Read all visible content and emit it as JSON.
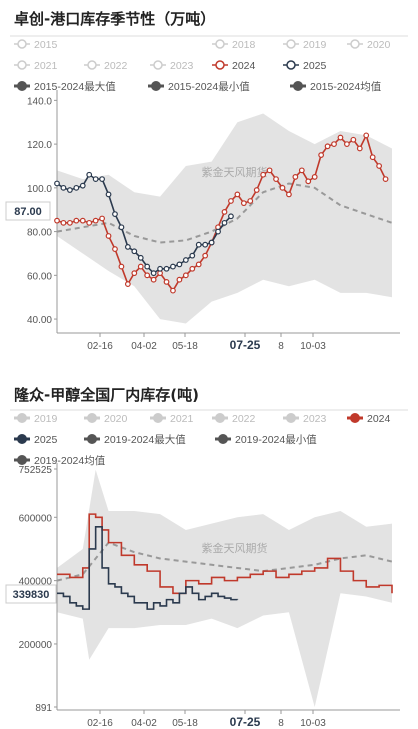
{
  "charts": [
    {
      "title": "卓创-港口库存季节性（万吨）",
      "legend": [
        {
          "label": "2015",
          "active": false,
          "color": "#c8c8c8",
          "marker": "circle"
        },
        {
          "label": "2018",
          "active": false,
          "color": "#c8c8c8",
          "marker": "circle"
        },
        {
          "label": "2019",
          "active": false,
          "color": "#c8c8c8",
          "marker": "circle"
        },
        {
          "label": "2020",
          "active": false,
          "color": "#c8c8c8",
          "marker": "circle"
        },
        {
          "label": "2021",
          "active": false,
          "color": "#c8c8c8",
          "marker": "circle"
        },
        {
          "label": "2022",
          "active": false,
          "color": "#c8c8c8",
          "marker": "circle"
        },
        {
          "label": "2023",
          "active": false,
          "color": "#c8c8c8",
          "marker": "circle"
        },
        {
          "label": "2024",
          "active": true,
          "color": "#c0392b",
          "marker": "circle"
        },
        {
          "label": "2025",
          "active": true,
          "color": "#2b3a4e",
          "marker": "circle"
        },
        {
          "label": "2015-2024最大值",
          "active": true,
          "color": "#555555",
          "marker": "dot"
        },
        {
          "label": "2015-2024最小值",
          "active": true,
          "color": "#555555",
          "marker": "dot"
        },
        {
          "label": "2015-2024均值",
          "active": true,
          "color": "#555555",
          "marker": "dot"
        }
      ],
      "watermark": "紫金天风期货",
      "current_value_label": "87.00",
      "y_ticks": [
        "140.0",
        "120.0",
        "100.0",
        "80.00",
        "60.00",
        "40.00"
      ],
      "x_ticks": [
        "02-16",
        "04-02",
        "05-18",
        "07-25",
        "8",
        "10-03"
      ],
      "x_highlight": "07-25"
    },
    {
      "title": "隆众-甲醇全国厂内库存(吨)",
      "legend": [
        {
          "label": "2019",
          "active": false,
          "color": "#c8c8c8",
          "marker": "dot"
        },
        {
          "label": "2020",
          "active": false,
          "color": "#c8c8c8",
          "marker": "dot"
        },
        {
          "label": "2021",
          "active": false,
          "color": "#c8c8c8",
          "marker": "dot"
        },
        {
          "label": "2022",
          "active": false,
          "color": "#c8c8c8",
          "marker": "dot"
        },
        {
          "label": "2023",
          "active": false,
          "color": "#c8c8c8",
          "marker": "dot"
        },
        {
          "label": "2024",
          "active": true,
          "color": "#c0392b",
          "marker": "dot"
        },
        {
          "label": "2025",
          "active": true,
          "color": "#2b3a4e",
          "marker": "dot"
        },
        {
          "label": "2019-2024最大值",
          "active": true,
          "color": "#555555",
          "marker": "dot"
        },
        {
          "label": "2019-2024最小值",
          "active": true,
          "color": "#555555",
          "marker": "dot"
        },
        {
          "label": "2019-2024均值",
          "active": true,
          "color": "#555555",
          "marker": "dot"
        }
      ],
      "watermark": "紫金天风期货",
      "current_value_label": "339830",
      "y_ticks": [
        "752525",
        "600000",
        "400000",
        "200000",
        "891"
      ],
      "x_ticks": [
        "02-16",
        "04-02",
        "05-18",
        "07-25",
        "8",
        "10-03"
      ],
      "x_highlight": "07-25"
    }
  ],
  "chart_data": [
    {
      "type": "area",
      "title": "卓创-港口库存季节性（万吨）",
      "ylim": [
        35,
        142
      ],
      "x_range": [
        0,
        52
      ],
      "series": [
        {
          "name": "2024",
          "x": [
            0,
            1,
            2,
            3,
            4,
            5,
            6,
            7,
            8,
            9,
            10,
            11,
            12,
            13,
            14,
            15,
            16,
            17,
            18,
            19,
            20,
            21,
            22,
            23,
            24,
            25,
            26,
            27,
            28,
            29,
            30,
            31,
            32,
            33,
            34,
            35,
            36,
            37,
            38,
            39,
            40,
            41,
            42,
            43,
            44,
            45,
            46,
            47,
            48,
            49,
            50,
            51
          ],
          "values": [
            85,
            84,
            84,
            85,
            85,
            84,
            85,
            86,
            78,
            72,
            64,
            56,
            61,
            64,
            60,
            58,
            61,
            57,
            53,
            58,
            60,
            63,
            65,
            69,
            75,
            82,
            89,
            94,
            97,
            93,
            94,
            99,
            106,
            108,
            104,
            100,
            97,
            105,
            108,
            103,
            105,
            115,
            119,
            120,
            123,
            120,
            122,
            118,
            124,
            114,
            110,
            104
          ]
        },
        {
          "name": "2025",
          "x": [
            0,
            1,
            2,
            3,
            4,
            5,
            6,
            7,
            8,
            9,
            10,
            11,
            12,
            13,
            14,
            15,
            16,
            17,
            18,
            19,
            20,
            21,
            22,
            23,
            24,
            25,
            26,
            27,
            28,
            29,
            30
          ],
          "values": [
            102,
            100,
            99,
            100,
            101,
            106,
            104,
            104,
            97,
            88,
            82,
            73,
            71,
            68,
            64,
            61,
            63,
            63,
            64,
            65,
            67,
            69,
            74,
            74,
            75,
            80,
            84,
            87,
            null,
            null,
            null
          ]
        },
        {
          "name": "2015-2024最大值",
          "x": [
            0,
            4,
            8,
            12,
            16,
            20,
            24,
            28,
            32,
            36,
            40,
            44,
            48,
            52
          ],
          "values": [
            108,
            104,
            106,
            98,
            96,
            110,
            112,
            130,
            134,
            126,
            120,
            126,
            124,
            118
          ]
        },
        {
          "name": "2015-2024最小值",
          "x": [
            0,
            4,
            8,
            12,
            16,
            20,
            24,
            28,
            32,
            36,
            40,
            44,
            48,
            52
          ],
          "values": [
            78,
            70,
            62,
            55,
            40,
            38,
            48,
            52,
            58,
            55,
            58,
            52,
            52,
            50
          ]
        },
        {
          "name": "2015-2024均值",
          "x": [
            0,
            4,
            8,
            12,
            16,
            20,
            24,
            28,
            32,
            36,
            40,
            44,
            48,
            52
          ],
          "values": [
            80,
            82,
            84,
            78,
            75,
            76,
            80,
            86,
            98,
            102,
            100,
            92,
            88,
            84
          ]
        }
      ]
    },
    {
      "type": "area",
      "title": "隆众-甲醇全国厂内库存(吨)",
      "ylim": [
        891,
        752525
      ],
      "x_range": [
        0,
        52
      ],
      "series": [
        {
          "name": "2024",
          "x": [
            0,
            2,
            4,
            5,
            6,
            7,
            8,
            10,
            12,
            14,
            16,
            18,
            20,
            22,
            24,
            26,
            28,
            30,
            32,
            34,
            36,
            38,
            40,
            42,
            44,
            46,
            48,
            50,
            52
          ],
          "values": [
            420000,
            410000,
            440000,
            610000,
            600000,
            560000,
            520000,
            480000,
            450000,
            430000,
            380000,
            360000,
            400000,
            390000,
            410000,
            400000,
            410000,
            420000,
            430000,
            410000,
            420000,
            430000,
            440000,
            470000,
            430000,
            400000,
            380000,
            385000,
            360000
          ]
        },
        {
          "name": "2025",
          "x": [
            0,
            1,
            2,
            3,
            4,
            5,
            6,
            7,
            8,
            9,
            10,
            11,
            12,
            13,
            14,
            15,
            16,
            17,
            18,
            19,
            20,
            21,
            22,
            23,
            24,
            25,
            26,
            27,
            28
          ],
          "values": [
            360000,
            350000,
            330000,
            320000,
            310000,
            500000,
            570000,
            440000,
            390000,
            380000,
            360000,
            350000,
            330000,
            330000,
            310000,
            330000,
            320000,
            340000,
            330000,
            360000,
            380000,
            360000,
            340000,
            350000,
            360000,
            350000,
            345000,
            340000,
            339830
          ]
        },
        {
          "name": "2019-2024最大值",
          "x": [
            0,
            4,
            6,
            8,
            12,
            16,
            20,
            24,
            28,
            32,
            36,
            40,
            44,
            48,
            52
          ],
          "values": [
            440000,
            500000,
            750000,
            620000,
            620000,
            610000,
            560000,
            580000,
            600000,
            610000,
            560000,
            600000,
            620000,
            570000,
            580000
          ]
        },
        {
          "name": "2019-2024最小值",
          "x": [
            0,
            4,
            5,
            8,
            12,
            16,
            20,
            24,
            28,
            32,
            36,
            40,
            44,
            48,
            52
          ],
          "values": [
            300000,
            280000,
            150000,
            250000,
            250000,
            260000,
            260000,
            280000,
            250000,
            290000,
            300000,
            891,
            360000,
            350000,
            330000
          ]
        },
        {
          "name": "2019-2024均值",
          "x": [
            0,
            4,
            8,
            12,
            16,
            20,
            24,
            28,
            32,
            36,
            40,
            44,
            48,
            52
          ],
          "values": [
            400000,
            420000,
            520000,
            490000,
            470000,
            460000,
            450000,
            440000,
            430000,
            440000,
            450000,
            470000,
            480000,
            460000
          ]
        }
      ]
    }
  ]
}
